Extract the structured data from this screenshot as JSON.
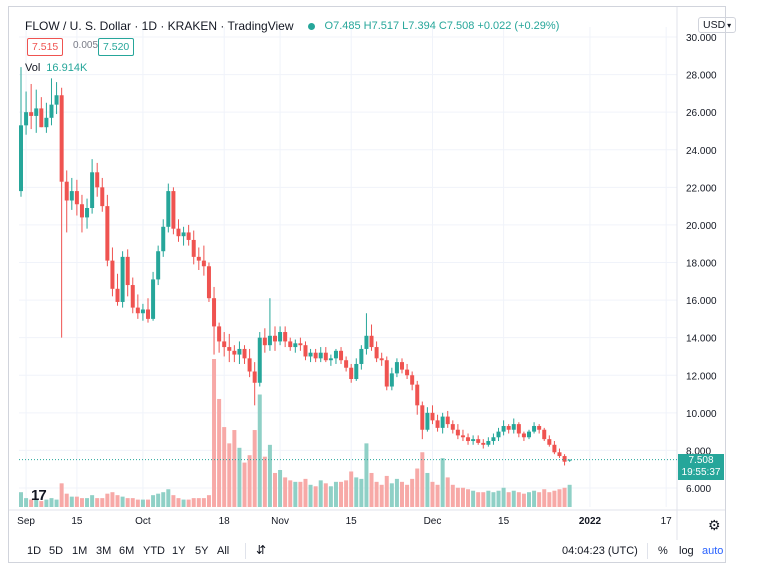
{
  "header": {
    "title": "FLOW / U. S. Dollar · 1D · KRAKEN · TradingView",
    "ohlc": "O7.485 H7.517 L7.394 C7.508 +0.022 (+0.29%)"
  },
  "quote": {
    "bid": "7.515",
    "spread": "0.005",
    "ask": "7.520"
  },
  "volume": {
    "label": "Vol",
    "value": "16.914K"
  },
  "currency_button": "USD",
  "last_price": {
    "price": "7.508",
    "countdown": "19:55:37"
  },
  "colors": {
    "up": "#26a69a",
    "down": "#ef5350",
    "up_vol": "#8fd0c6",
    "down_vol": "#f7a9a7",
    "grid": "#f0f3fa"
  },
  "timeframes": [
    "1D",
    "5D",
    "1M",
    "3M",
    "6M",
    "YTD",
    "1Y",
    "5Y",
    "All"
  ],
  "bottom_right": {
    "clock": "04:04:23 (UTC)",
    "percent": "%",
    "log": "log",
    "auto": "auto"
  },
  "chart_data": {
    "type": "candlestick",
    "y_ticks": [
      "30.000",
      "28.000",
      "26.000",
      "24.000",
      "22.000",
      "20.000",
      "18.000",
      "16.000",
      "14.000",
      "12.000",
      "10.000",
      "8.000",
      "6.000"
    ],
    "ylim": [
      4.5,
      30.8
    ],
    "x_ticks": [
      {
        "label": "Sep",
        "index": 1
      },
      {
        "label": "15",
        "index": 11
      },
      {
        "label": "Oct",
        "index": 24
      },
      {
        "label": "18",
        "index": 40
      },
      {
        "label": "Nov",
        "index": 51
      },
      {
        "label": "15",
        "index": 65
      },
      {
        "label": "Dec",
        "index": 81
      },
      {
        "label": "15",
        "index": 95
      },
      {
        "label": "2022",
        "index": 112
      },
      {
        "label": "17",
        "index": 127
      }
    ],
    "last_price": 7.508,
    "candles": [
      [
        21.8,
        28.4,
        21.5,
        25.3
      ],
      [
        25.3,
        27.1,
        24.8,
        26.0
      ],
      [
        26.0,
        27.5,
        25.1,
        25.8
      ],
      [
        25.8,
        27.2,
        24.9,
        26.2
      ],
      [
        26.2,
        26.8,
        25.2,
        25.2
      ],
      [
        25.2,
        26.5,
        24.9,
        25.7
      ],
      [
        25.7,
        27.8,
        25.3,
        26.4
      ],
      [
        26.4,
        27.6,
        25.9,
        26.9
      ],
      [
        26.9,
        27.3,
        14.0,
        22.3
      ],
      [
        22.3,
        22.9,
        19.6,
        21.3
      ],
      [
        21.3,
        22.5,
        20.8,
        21.8
      ],
      [
        21.8,
        22.4,
        20.5,
        21.1
      ],
      [
        21.1,
        21.6,
        19.6,
        20.4
      ],
      [
        20.4,
        21.4,
        19.8,
        20.9
      ],
      [
        20.9,
        23.5,
        20.6,
        22.8
      ],
      [
        22.8,
        23.3,
        21.5,
        22.0
      ],
      [
        22.0,
        22.5,
        20.7,
        21.0
      ],
      [
        21.0,
        21.6,
        17.8,
        18.1
      ],
      [
        18.1,
        18.8,
        16.2,
        16.6
      ],
      [
        16.6,
        17.4,
        15.7,
        15.9
      ],
      [
        15.9,
        18.6,
        15.6,
        18.3
      ],
      [
        18.3,
        18.7,
        16.2,
        16.8
      ],
      [
        16.8,
        17.2,
        15.3,
        15.6
      ],
      [
        15.6,
        16.3,
        15.0,
        15.3
      ],
      [
        15.3,
        15.8,
        14.9,
        15.5
      ],
      [
        15.5,
        16.1,
        14.8,
        15.0
      ],
      [
        15.0,
        17.5,
        14.9,
        17.1
      ],
      [
        17.1,
        18.9,
        16.8,
        18.6
      ],
      [
        18.6,
        20.3,
        18.3,
        19.9
      ],
      [
        19.9,
        22.2,
        19.6,
        21.8
      ],
      [
        21.8,
        22.0,
        19.5,
        19.8
      ],
      [
        19.8,
        20.3,
        19.1,
        19.4
      ],
      [
        19.4,
        19.9,
        18.9,
        19.6
      ],
      [
        19.6,
        20.0,
        18.9,
        19.2
      ],
      [
        19.2,
        19.7,
        17.9,
        18.3
      ],
      [
        18.3,
        18.8,
        17.6,
        18.1
      ],
      [
        18.1,
        18.9,
        17.3,
        17.8
      ],
      [
        17.8,
        18.0,
        15.9,
        16.1
      ],
      [
        16.1,
        16.7,
        13.1,
        14.6
      ],
      [
        14.6,
        14.8,
        13.2,
        13.8
      ],
      [
        13.8,
        14.3,
        13.0,
        13.5
      ],
      [
        13.5,
        14.2,
        12.7,
        13.3
      ],
      [
        13.3,
        13.6,
        12.7,
        13.1
      ],
      [
        13.1,
        13.8,
        12.6,
        13.4
      ],
      [
        13.4,
        13.6,
        12.6,
        12.9
      ],
      [
        12.9,
        13.4,
        11.9,
        12.2
      ],
      [
        12.2,
        12.7,
        10.4,
        11.6
      ],
      [
        11.6,
        14.3,
        11.4,
        14.0
      ],
      [
        14.0,
        14.5,
        13.2,
        13.6
      ],
      [
        13.6,
        16.1,
        13.3,
        14.1
      ],
      [
        14.1,
        14.6,
        13.3,
        13.8
      ],
      [
        13.8,
        14.6,
        13.6,
        14.3
      ],
      [
        14.3,
        14.6,
        13.5,
        13.8
      ],
      [
        13.8,
        14.0,
        13.3,
        13.5
      ],
      [
        13.5,
        13.9,
        13.2,
        13.7
      ],
      [
        13.7,
        14.0,
        13.3,
        13.6
      ],
      [
        13.6,
        13.8,
        12.8,
        13.0
      ],
      [
        13.0,
        13.4,
        12.7,
        13.2
      ],
      [
        13.2,
        13.4,
        12.7,
        12.9
      ],
      [
        12.9,
        13.5,
        12.7,
        13.2
      ],
      [
        13.2,
        13.5,
        12.7,
        12.8
      ],
      [
        12.8,
        13.1,
        12.5,
        12.9
      ],
      [
        12.9,
        13.4,
        12.6,
        13.3
      ],
      [
        13.3,
        13.5,
        12.6,
        12.8
      ],
      [
        12.8,
        13.0,
        12.2,
        12.4
      ],
      [
        12.4,
        12.6,
        11.6,
        11.8
      ],
      [
        11.8,
        12.9,
        11.7,
        12.6
      ],
      [
        12.6,
        13.6,
        12.3,
        13.4
      ],
      [
        13.4,
        15.3,
        13.1,
        14.1
      ],
      [
        14.1,
        14.7,
        13.3,
        13.5
      ],
      [
        13.5,
        13.8,
        12.7,
        12.9
      ],
      [
        12.9,
        13.2,
        12.5,
        12.8
      ],
      [
        12.8,
        13.0,
        11.2,
        11.4
      ],
      [
        11.4,
        12.4,
        11.2,
        12.1
      ],
      [
        12.1,
        12.9,
        11.9,
        12.7
      ],
      [
        12.7,
        12.9,
        12.1,
        12.3
      ],
      [
        12.3,
        12.6,
        11.8,
        12.0
      ],
      [
        12.0,
        12.2,
        11.2,
        11.5
      ],
      [
        11.5,
        11.7,
        9.9,
        10.4
      ],
      [
        10.4,
        10.6,
        8.6,
        9.1
      ],
      [
        9.1,
        10.3,
        9.0,
        10.0
      ],
      [
        10.0,
        10.4,
        9.4,
        9.6
      ],
      [
        9.6,
        9.9,
        9.0,
        9.2
      ],
      [
        9.2,
        10.0,
        8.9,
        9.8
      ],
      [
        9.8,
        10.1,
        9.2,
        9.4
      ],
      [
        9.4,
        9.6,
        8.9,
        9.1
      ],
      [
        9.1,
        9.4,
        8.6,
        8.8
      ],
      [
        8.8,
        9.1,
        8.5,
        8.7
      ],
      [
        8.7,
        8.9,
        8.3,
        8.5
      ],
      [
        8.5,
        8.8,
        8.3,
        8.6
      ],
      [
        8.6,
        8.8,
        8.3,
        8.4
      ],
      [
        8.4,
        8.6,
        8.1,
        8.3
      ],
      [
        8.3,
        8.7,
        8.2,
        8.5
      ],
      [
        8.5,
        8.9,
        8.3,
        8.7
      ],
      [
        8.7,
        9.2,
        8.5,
        9.0
      ],
      [
        9.0,
        9.6,
        8.8,
        9.3
      ],
      [
        9.3,
        9.4,
        8.9,
        9.1
      ],
      [
        9.1,
        9.7,
        8.9,
        9.4
      ],
      [
        9.4,
        9.5,
        8.7,
        8.9
      ],
      [
        8.9,
        9.0,
        8.5,
        8.7
      ],
      [
        8.7,
        9.1,
        8.6,
        9.0
      ],
      [
        9.0,
        9.5,
        8.9,
        9.3
      ],
      [
        9.3,
        9.4,
        8.9,
        9.1
      ],
      [
        9.1,
        9.2,
        8.5,
        8.6
      ],
      [
        8.6,
        8.8,
        8.2,
        8.3
      ],
      [
        8.3,
        8.5,
        7.8,
        7.9
      ],
      [
        7.9,
        8.1,
        7.6,
        7.7
      ],
      [
        7.7,
        7.8,
        7.2,
        7.4
      ],
      [
        7.485,
        7.517,
        7.394,
        7.508
      ]
    ],
    "volumes": [
      0.1,
      0.06,
      0.05,
      0.05,
      0.04,
      0.05,
      0.06,
      0.05,
      0.16,
      0.09,
      0.07,
      0.07,
      0.06,
      0.06,
      0.08,
      0.06,
      0.06,
      0.09,
      0.1,
      0.08,
      0.07,
      0.06,
      0.06,
      0.05,
      0.05,
      0.05,
      0.08,
      0.09,
      0.1,
      0.12,
      0.08,
      0.06,
      0.05,
      0.05,
      0.06,
      0.06,
      0.06,
      0.08,
      1.0,
      0.73,
      0.54,
      0.43,
      0.52,
      0.4,
      0.3,
      0.35,
      0.52,
      0.76,
      0.34,
      0.42,
      0.23,
      0.25,
      0.2,
      0.18,
      0.17,
      0.17,
      0.19,
      0.15,
      0.14,
      0.18,
      0.16,
      0.14,
      0.17,
      0.17,
      0.18,
      0.24,
      0.2,
      0.19,
      0.43,
      0.23,
      0.17,
      0.15,
      0.21,
      0.16,
      0.19,
      0.17,
      0.15,
      0.19,
      0.26,
      0.37,
      0.23,
      0.17,
      0.15,
      0.33,
      0.2,
      0.15,
      0.13,
      0.13,
      0.12,
      0.11,
      0.1,
      0.1,
      0.11,
      0.1,
      0.11,
      0.13,
      0.1,
      0.11,
      0.1,
      0.09,
      0.1,
      0.11,
      0.1,
      0.12,
      0.1,
      0.11,
      0.12,
      0.13,
      0.15
    ]
  }
}
